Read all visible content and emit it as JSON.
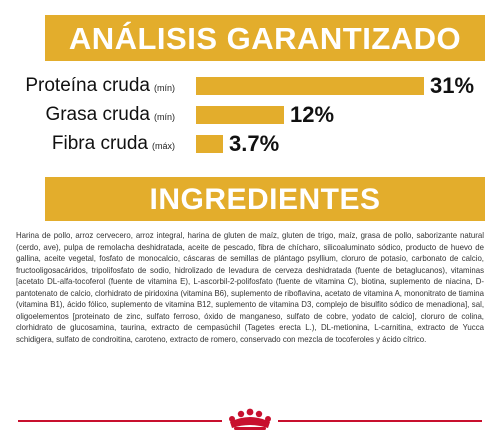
{
  "analysis": {
    "title": "ANÁLISIS GARANTIZADO",
    "rows": [
      {
        "label": "Proteína cruda",
        "qualifier": "(mín)",
        "value": "31%",
        "percent": 31
      },
      {
        "label": "Grasa cruda",
        "qualifier": "(mín)",
        "value": "12%",
        "percent": 12
      },
      {
        "label": "Fibra cruda",
        "qualifier": "(máx)",
        "value": "3.7%",
        "percent": 3.7
      }
    ],
    "bar_color": "#e3ad2c"
  },
  "ingredients": {
    "title": "INGREDIENTES",
    "text": "Harina de pollo, arroz cervecero, arroz integral, harina de gluten de maíz, gluten de trigo, maíz, grasa de pollo, saborizante natural (cerdo, ave), pulpa de remolacha deshidratada, aceite de pescado, fibra de chícharo, silicoaluminato sódico, producto de huevo de gallina, aceite vegetal, fosfato de monocalcio, cáscaras de semillas de plántago psyllium, cloruro de potasio, carbonato de calcio, fructooligosacáridos, tripolifosfato de sodio, hidrolizado de levadura de cerveza deshidratada (fuente de betaglucanos), vitaminas [acetato DL-alfa-tocoferol (fuente de vitamina E), L-ascorbil-2-polifosfato (fuente de vitamina C), biotina, suplemento de niacina, D-pantotenato de calcio, clorhidrato de piridoxina (vitamina B6), suplemento de riboflavina, acetato de vitamina A, mononitrato de tiamina (vitamina B1), ácido fólico, suplemento de vitamina B12, suplemento de vitamina D3, complejo de bisulfito sódico de menadiona], sal, oligoelementos [proteinato de zinc, sulfato ferroso, óxido de manganeso, sulfato de cobre, yodato de calcio], cloruro de colina, clorhidrato de glucosamina, taurina, extracto de cempasúchil (Tagetes erecta L.), DL-metionina, L-carnitina, extracto de Yucca schidigera, sulfato de condroitina, caroteno, extracto de romero, conservado con mezcla de tocoferoles y ácido cítrico."
  },
  "brand": {
    "logo_icon": "royal-canin-crown-icon",
    "accent_color": "#c8102e"
  }
}
